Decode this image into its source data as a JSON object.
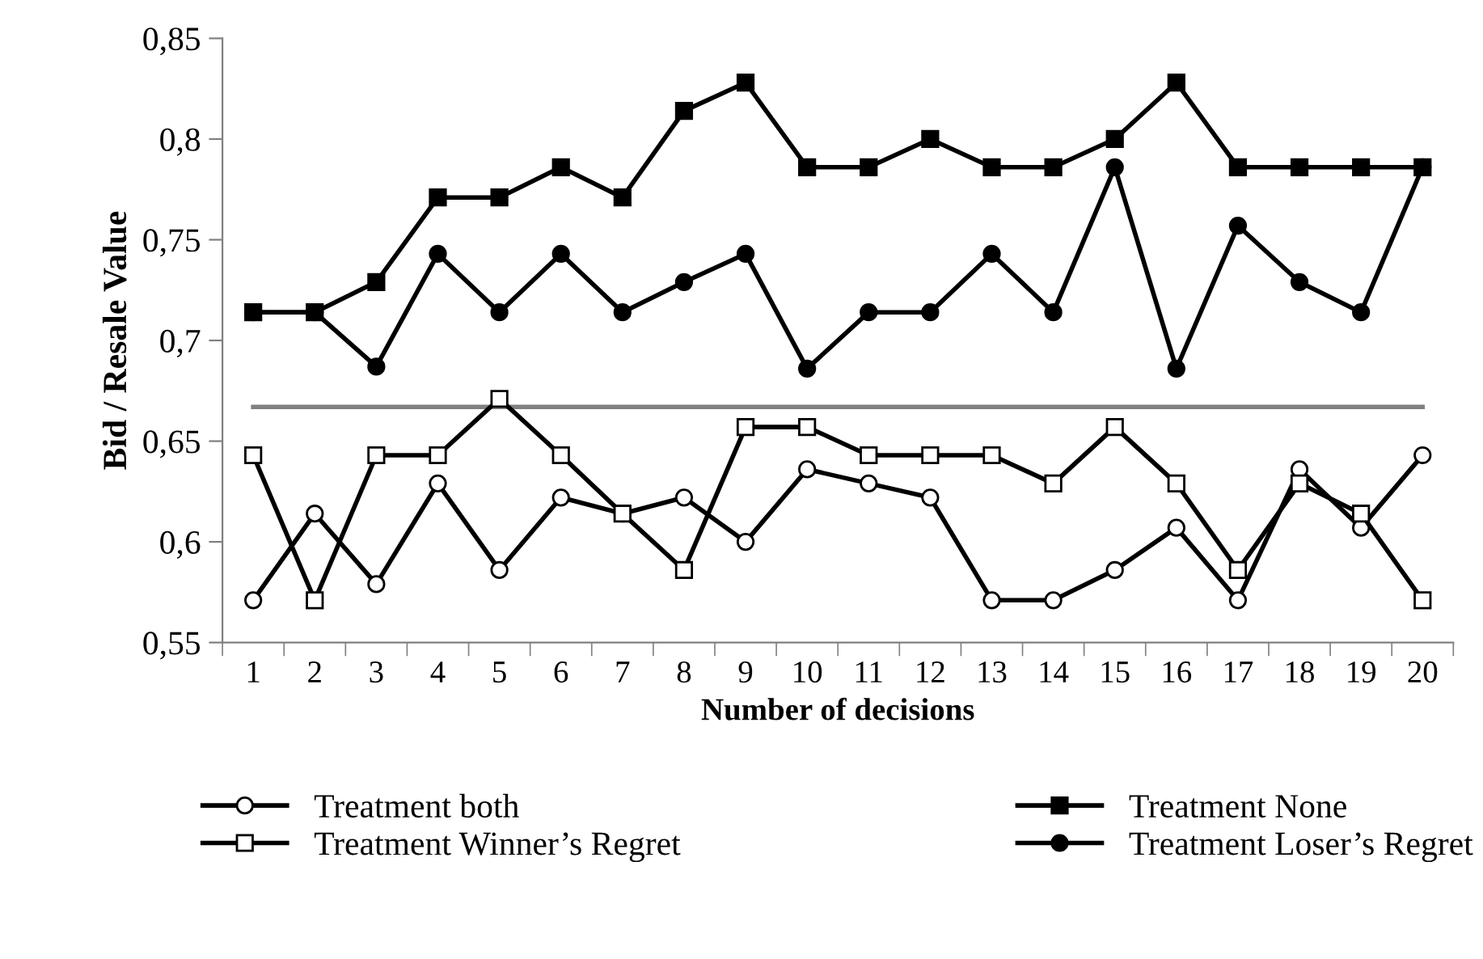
{
  "chart_data": {
    "type": "line",
    "xlabel": "Number of decisions",
    "ylabel": "Bid / Resale Value",
    "categories": [
      "1",
      "2",
      "3",
      "4",
      "5",
      "6",
      "7",
      "8",
      "9",
      "10",
      "11",
      "12",
      "13",
      "14",
      "15",
      "16",
      "17",
      "18",
      "19",
      "20"
    ],
    "ylim": [
      0.55,
      0.85
    ],
    "yticks": [
      {
        "value": 0.55,
        "label": "0,55"
      },
      {
        "value": 0.6,
        "label": "0,6"
      },
      {
        "value": 0.65,
        "label": "0,65"
      },
      {
        "value": 0.7,
        "label": "0,7"
      },
      {
        "value": 0.75,
        "label": "0,75"
      },
      {
        "value": 0.8,
        "label": "0,8"
      },
      {
        "value": 0.85,
        "label": "0,85"
      }
    ],
    "grid": false,
    "legend": "bottom",
    "line_style": "solid",
    "ref_lines": [
      {
        "axis": "y",
        "value": 0.667,
        "color": "#808080"
      }
    ],
    "series": [
      {
        "name": "Treatment both",
        "color": "#000000",
        "marker": "circle",
        "values": [
          0.571,
          0.614,
          0.579,
          0.629,
          0.586,
          0.622,
          0.614,
          0.622,
          0.6,
          0.636,
          0.629,
          0.622,
          0.571,
          0.571,
          0.586,
          0.607,
          0.571,
          0.636,
          0.607,
          0.643
        ]
      },
      {
        "name": "Treatment Winner’s Regret",
        "color": "#000000",
        "marker": "square",
        "values": [
          0.643,
          0.571,
          0.643,
          0.643,
          0.671,
          0.643,
          0.614,
          0.586,
          0.657,
          0.657,
          0.643,
          0.643,
          0.643,
          0.629,
          0.657,
          0.629,
          0.586,
          0.629,
          0.614,
          0.571
        ]
      },
      {
        "name": "Treatment None",
        "color": "#000000",
        "marker": "square",
        "values": [
          0.714,
          0.714,
          0.729,
          0.771,
          0.771,
          0.786,
          0.771,
          0.814,
          0.828,
          0.786,
          0.786,
          0.8,
          0.786,
          0.786,
          0.8,
          0.828,
          0.786,
          0.786,
          0.786,
          0.786
        ]
      },
      {
        "name": "Treatment Loser’s Regret",
        "color": "#000000",
        "marker": "circle",
        "values": [
          0.714,
          0.714,
          0.687,
          0.743,
          0.714,
          0.743,
          0.714,
          0.729,
          0.743,
          0.686,
          0.714,
          0.714,
          0.743,
          0.714,
          0.786,
          0.686,
          0.757,
          0.729,
          0.714,
          0.786
        ]
      }
    ]
  }
}
